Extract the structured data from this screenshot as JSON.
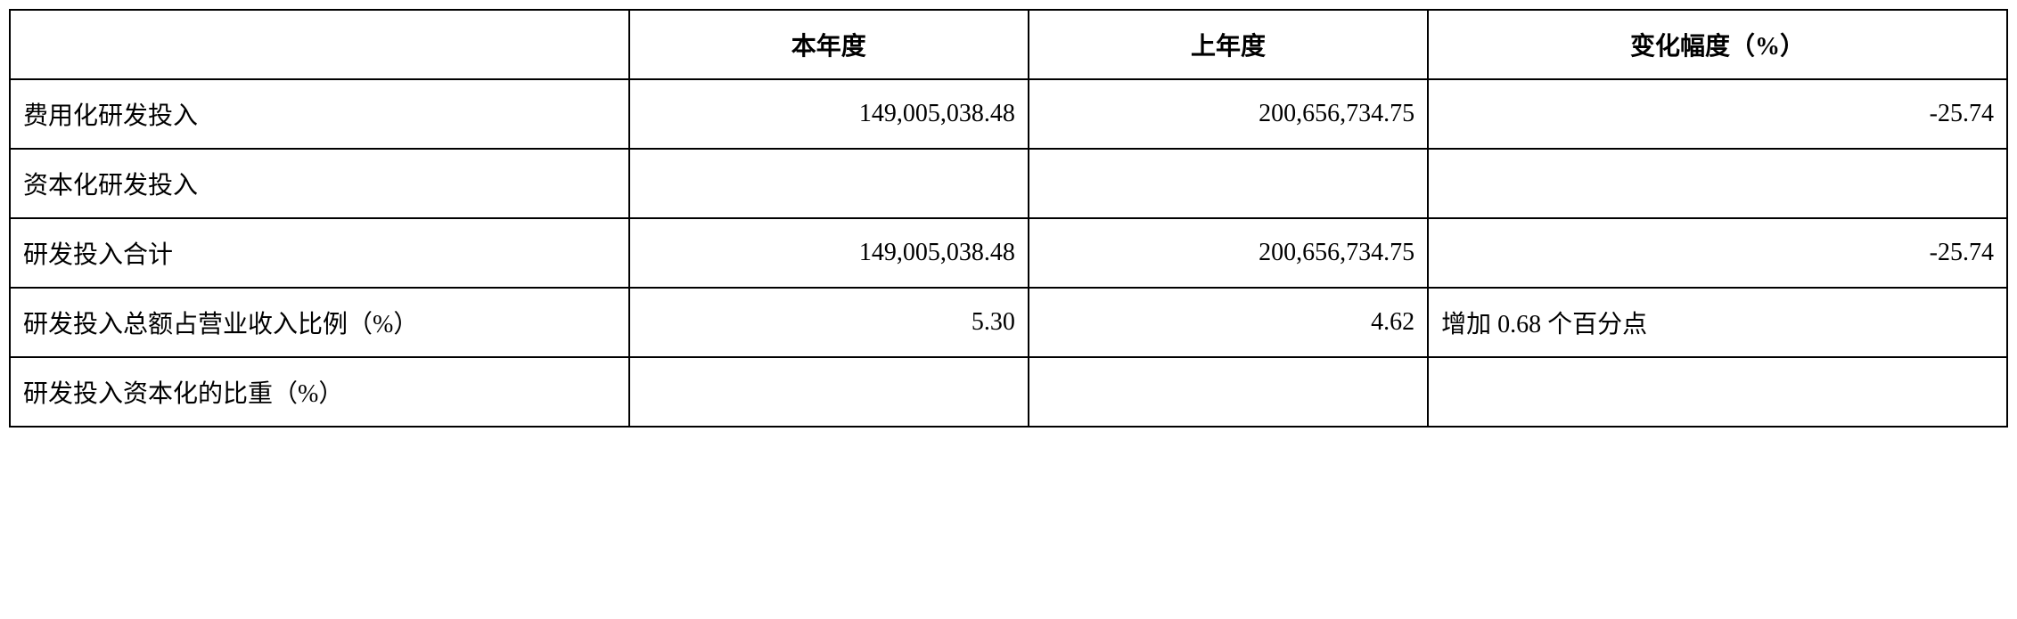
{
  "table": {
    "type": "table",
    "columns": [
      {
        "key": "label",
        "header": "",
        "width_pct": 31,
        "align": "left"
      },
      {
        "key": "current_year",
        "header": "本年度",
        "width_pct": 20,
        "align": "right"
      },
      {
        "key": "previous_year",
        "header": "上年度",
        "width_pct": 20,
        "align": "right"
      },
      {
        "key": "change_pct",
        "header": "变化幅度（%）",
        "width_pct": 29,
        "align": "right"
      }
    ],
    "rows": [
      {
        "label": "费用化研发投入",
        "current_year": "149,005,038.48",
        "previous_year": "200,656,734.75",
        "change_pct": "-25.74",
        "change_align": "right"
      },
      {
        "label": "资本化研发投入",
        "current_year": "",
        "previous_year": "",
        "change_pct": "",
        "change_align": "right"
      },
      {
        "label": "研发投入合计",
        "current_year": "149,005,038.48",
        "previous_year": "200,656,734.75",
        "change_pct": "-25.74",
        "change_align": "right"
      },
      {
        "label": "研发投入总额占营业收入比例（%）",
        "current_year": "5.30",
        "previous_year": "4.62",
        "change_pct": "增加 0.68 个百分点",
        "change_align": "left"
      },
      {
        "label": "研发投入资本化的比重（%）",
        "current_year": "",
        "previous_year": "",
        "change_pct": "",
        "change_align": "right"
      }
    ],
    "border_color": "#000000",
    "background_color": "#ffffff",
    "text_color": "#000000",
    "font_size": 28,
    "border_width": 2
  }
}
